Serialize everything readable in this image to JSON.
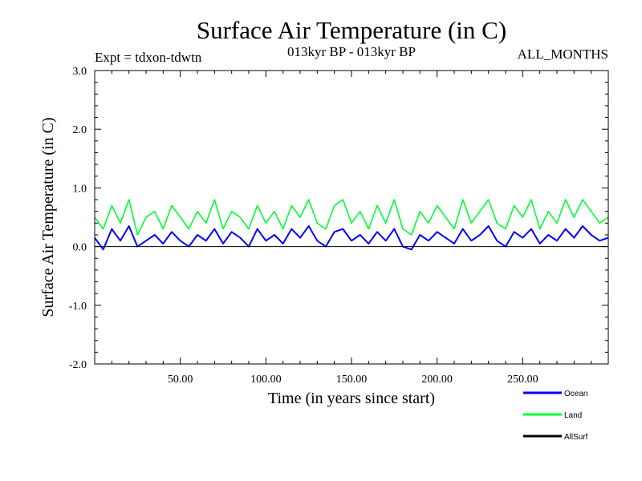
{
  "chart_data": {
    "type": "line",
    "title": "Surface Air Temperature (in C)",
    "subtitle_left": "Expt = tdxon-tdwtn",
    "subtitle_center": "013kyr BP - 013kyr BP",
    "subtitle_right": "ALL_MONTHS",
    "xlabel": "Time (in years since start)",
    "ylabel": "Surface Air Temperature (in C)",
    "xlim": [
      0,
      300
    ],
    "ylim": [
      -2.0,
      3.0
    ],
    "xticks": [
      50,
      100,
      150,
      200,
      250
    ],
    "xtick_labels": [
      "50.00",
      "100.00",
      "150.00",
      "200.00",
      "250.00"
    ],
    "yticks": [
      -2,
      -1,
      0,
      1,
      2,
      3
    ],
    "ytick_labels": [
      "-2.0",
      "-1.0",
      "0.0",
      "1.0",
      "2.0",
      "3.0"
    ],
    "zero_line": true,
    "grid": false,
    "legend_position": "bottom-right",
    "series": [
      {
        "name": "Ocean",
        "color": "#0000ff",
        "x": [
          0,
          5,
          10,
          15,
          20,
          25,
          30,
          35,
          40,
          45,
          50,
          55,
          60,
          65,
          70,
          75,
          80,
          85,
          90,
          95,
          100,
          105,
          110,
          115,
          120,
          125,
          130,
          135,
          140,
          145,
          150,
          155,
          160,
          165,
          170,
          175,
          180,
          185,
          190,
          195,
          200,
          205,
          210,
          215,
          220,
          225,
          230,
          235,
          240,
          245,
          250,
          255,
          260,
          265,
          270,
          275,
          280,
          285,
          290,
          295,
          300
        ],
        "y": [
          0.15,
          -0.05,
          0.3,
          0.1,
          0.35,
          0.0,
          0.1,
          0.2,
          0.05,
          0.25,
          0.1,
          0.0,
          0.2,
          0.1,
          0.3,
          0.05,
          0.25,
          0.15,
          0.0,
          0.3,
          0.1,
          0.2,
          0.05,
          0.3,
          0.15,
          0.35,
          0.1,
          0.0,
          0.25,
          0.3,
          0.1,
          0.2,
          0.05,
          0.25,
          0.1,
          0.3,
          0.0,
          -0.05,
          0.2,
          0.1,
          0.25,
          0.15,
          0.05,
          0.3,
          0.1,
          0.2,
          0.35,
          0.1,
          0.0,
          0.25,
          0.15,
          0.3,
          0.05,
          0.2,
          0.1,
          0.3,
          0.15,
          0.35,
          0.2,
          0.1,
          0.15
        ]
      },
      {
        "name": "Land",
        "color": "#00ff33",
        "x": [
          0,
          5,
          10,
          15,
          20,
          25,
          30,
          35,
          40,
          45,
          50,
          55,
          60,
          65,
          70,
          75,
          80,
          85,
          90,
          95,
          100,
          105,
          110,
          115,
          120,
          125,
          130,
          135,
          140,
          145,
          150,
          155,
          160,
          165,
          170,
          175,
          180,
          185,
          190,
          195,
          200,
          205,
          210,
          215,
          220,
          225,
          230,
          235,
          240,
          245,
          250,
          255,
          260,
          265,
          270,
          275,
          280,
          285,
          290,
          295,
          300
        ],
        "y": [
          0.5,
          0.3,
          0.7,
          0.4,
          0.8,
          0.2,
          0.5,
          0.6,
          0.3,
          0.7,
          0.5,
          0.3,
          0.6,
          0.4,
          0.8,
          0.3,
          0.6,
          0.5,
          0.3,
          0.7,
          0.4,
          0.6,
          0.3,
          0.7,
          0.5,
          0.8,
          0.4,
          0.3,
          0.7,
          0.8,
          0.4,
          0.6,
          0.3,
          0.7,
          0.4,
          0.8,
          0.3,
          0.2,
          0.6,
          0.4,
          0.7,
          0.5,
          0.3,
          0.8,
          0.4,
          0.6,
          0.8,
          0.4,
          0.3,
          0.7,
          0.5,
          0.8,
          0.3,
          0.6,
          0.4,
          0.8,
          0.5,
          0.8,
          0.6,
          0.4,
          0.5
        ]
      },
      {
        "name": "AllSurf",
        "color": "#000000",
        "x": [],
        "y": []
      }
    ]
  }
}
